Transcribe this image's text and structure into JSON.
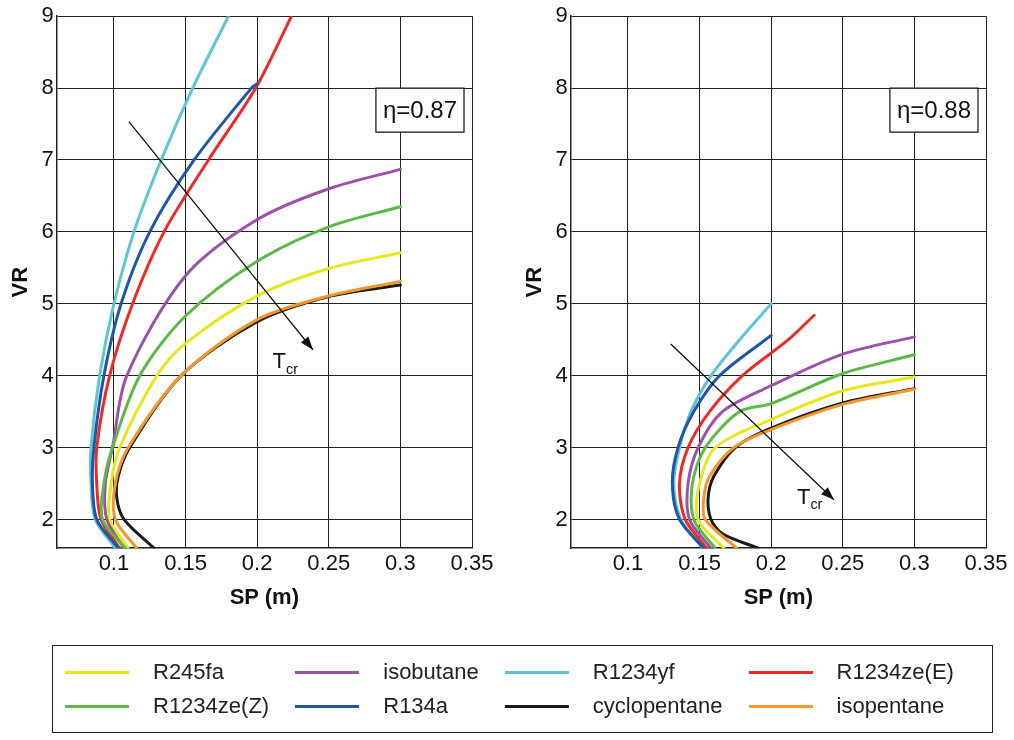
{
  "chart_data": [
    {
      "type": "line",
      "xlabel": "SP (m)",
      "ylabel": "VR",
      "xlim": [
        0.06,
        0.35
      ],
      "ylim": [
        1.6,
        9
      ],
      "xticks": [
        0.1,
        0.15,
        0.2,
        0.25,
        0.3,
        0.35
      ],
      "yticks": [
        2,
        3,
        4,
        5,
        6,
        7,
        8,
        9
      ],
      "grid": true,
      "legend": "bottom",
      "annotations": [
        "T$_{cr}$",
        "η=0.87"
      ],
      "series": [
        {
          "name": "R245fa",
          "color": "#e8e61c",
          "x": [
            0.11,
            0.097,
            0.098,
            0.104,
            0.13,
            0.15,
            0.2,
            0.25,
            0.3
          ],
          "values": [
            1.6,
            2,
            2.5,
            3,
            4,
            4.45,
            5.11,
            5.49,
            5.71
          ]
        },
        {
          "name": "isobutane",
          "color": "#9b52a8",
          "x": [
            0.107,
            0.095,
            0.094,
            0.099,
            0.109,
            0.15,
            0.2,
            0.25,
            0.3
          ],
          "values": [
            1.6,
            2,
            2.5,
            3,
            4,
            5.39,
            6.17,
            6.6,
            6.87
          ]
        },
        {
          "name": "R1234yf",
          "color": "#5bc6d6",
          "x": [
            0.101,
            0.087,
            0.084,
            0.084,
            0.09,
            0.1,
            0.114,
            0.133,
            0.155,
            0.18
          ],
          "values": [
            1.6,
            2,
            2.5,
            3,
            4,
            5,
            6,
            7,
            8,
            9
          ]
        },
        {
          "name": "R1234ze(E)",
          "color": "#ee2a24",
          "x": [
            0.104,
            0.091,
            0.088,
            0.088,
            0.097,
            0.113,
            0.135,
            0.166,
            0.199,
            0.224
          ],
          "values": [
            1.6,
            2,
            2.5,
            3,
            4,
            5,
            6,
            7,
            8,
            9
          ]
        },
        {
          "name": "R1234ze(Z)",
          "color": "#5cb946",
          "x": [
            0.108,
            0.092,
            0.093,
            0.099,
            0.118,
            0.15,
            0.2,
            0.25,
            0.3
          ],
          "values": [
            1.6,
            2,
            2.5,
            3,
            4,
            4.83,
            5.59,
            6.07,
            6.35
          ]
        },
        {
          "name": "R134a",
          "color": "#1f56a8",
          "x": [
            0.103,
            0.088,
            0.085,
            0.086,
            0.093,
            0.105,
            0.125,
            0.156,
            0.196,
            0.2
          ],
          "values": [
            1.6,
            2,
            2.5,
            3,
            4,
            5,
            6,
            7,
            8,
            8.06
          ]
        },
        {
          "name": "cyclopentane",
          "color": "#1a1a1a",
          "x": [
            0.128,
            0.107,
            0.102,
            0.103,
            0.111,
            0.147,
            0.2,
            0.25,
            0.3
          ],
          "values": [
            1.6,
            2,
            2.3,
            2.6,
            3,
            4,
            4.75,
            5.1,
            5.26
          ]
        },
        {
          "name": "isopentane",
          "color": "#f5962a",
          "x": [
            0.116,
            0.101,
            0.101,
            0.11,
            0.147,
            0.2,
            0.25,
            0.3
          ],
          "values": [
            1.6,
            2,
            2.5,
            3,
            4,
            4.78,
            5.11,
            5.31
          ]
        }
      ]
    },
    {
      "type": "line",
      "xlabel": "SP (m)",
      "ylabel": "VR",
      "xlim": [
        0.06,
        0.35
      ],
      "ylim": [
        1.6,
        9
      ],
      "xticks": [
        0.1,
        0.15,
        0.2,
        0.25,
        0.3,
        0.35
      ],
      "yticks": [
        2,
        3,
        4,
        5,
        6,
        7,
        8,
        9
      ],
      "grid": true,
      "annotations": [
        "T$_{cr}$",
        "η=0.88"
      ],
      "series": [
        {
          "color": "#e8e61c",
          "x": [
            0.167,
            0.149,
            0.15,
            0.161,
            0.2,
            0.25,
            0.3
          ],
          "values": [
            1.6,
            2,
            2.5,
            3,
            3.39,
            3.79,
            3.98
          ]
        },
        {
          "color": "#9b52a8",
          "x": [
            0.158,
            0.143,
            0.142,
            0.149,
            0.166,
            0.2,
            0.25,
            0.3
          ],
          "values": [
            1.6,
            2,
            2.5,
            3,
            3.5,
            3.86,
            4.3,
            4.54
          ]
        },
        {
          "color": "#5bc6d6",
          "x": [
            0.152,
            0.137,
            0.132,
            0.136,
            0.144,
            0.158,
            0.178,
            0.2
          ],
          "values": [
            1.6,
            2,
            2.5,
            3,
            3.5,
            4,
            4.5,
            5.0
          ]
        },
        {
          "color": "#ee2a24",
          "x": [
            0.155,
            0.14,
            0.136,
            0.142,
            0.157,
            0.18,
            0.212,
            0.23
          ],
          "values": [
            1.6,
            2,
            2.5,
            3,
            3.5,
            4,
            4.5,
            4.84
          ]
        },
        {
          "color": "#5cb946",
          "x": [
            0.161,
            0.146,
            0.145,
            0.154,
            0.178,
            0.2,
            0.25,
            0.3
          ],
          "values": [
            1.6,
            2,
            2.5,
            3,
            3.5,
            3.61,
            4.03,
            4.29
          ]
        },
        {
          "color": "#1f56a8",
          "x": [
            0.153,
            0.136,
            0.131,
            0.135,
            0.146,
            0.164,
            0.2
          ],
          "values": [
            1.6,
            2,
            2.5,
            3,
            3.5,
            4,
            4.56
          ]
        },
        {
          "color": "#1a1a1a",
          "x": [
            0.191,
            0.166,
            0.158,
            0.156,
            0.16,
            0.175,
            0.2,
            0.25,
            0.3
          ],
          "values": [
            1.6,
            1.8,
            2,
            2.3,
            2.6,
            3,
            3.27,
            3.62,
            3.82
          ]
        },
        {
          "color": "#f5962a",
          "x": [
            0.176,
            0.154,
            0.153,
            0.157,
            0.174,
            0.2,
            0.25,
            0.3
          ],
          "values": [
            1.6,
            2,
            2.3,
            2.6,
            3,
            3.25,
            3.6,
            3.81
          ]
        }
      ]
    }
  ]
}
